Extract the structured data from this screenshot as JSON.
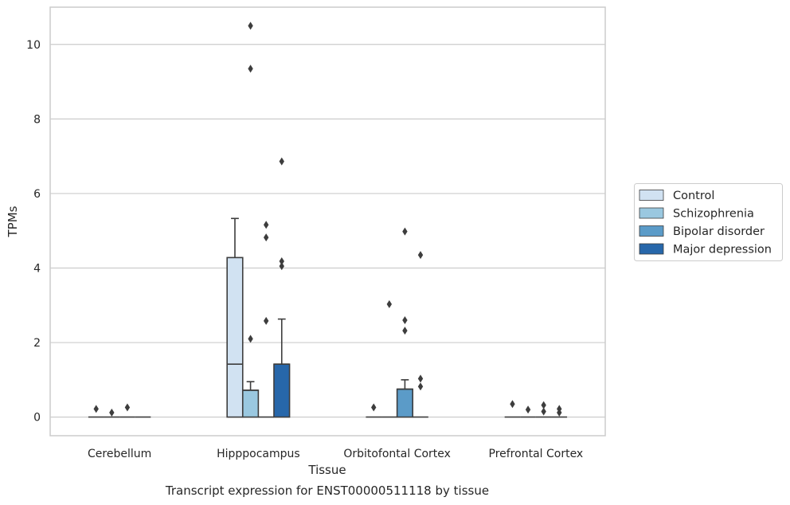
{
  "chart_data": {
    "type": "box",
    "title": "Transcript expression for ENST00000511118 by tissue",
    "xlabel": "Tissue",
    "ylabel": "TPMs",
    "ylim": [
      -0.5,
      11.0
    ],
    "yticks": [
      0,
      2,
      4,
      6,
      8,
      10
    ],
    "grid": true,
    "legend_position": "right",
    "categories": [
      "Cerebellum",
      "Hipppocampus",
      "Orbitofontal Cortex",
      "Prefrontal Cortex"
    ],
    "series": [
      {
        "name": "Control",
        "color": "#d1e2f2",
        "boxes": [
          {
            "q1": 0,
            "median": 0,
            "q3": 0,
            "whislo": 0,
            "whishi": 0,
            "fliers": [
              0.22
            ]
          },
          {
            "q1": 0,
            "median": 1.42,
            "q3": 4.28,
            "whislo": 0,
            "whishi": 5.33,
            "fliers": []
          },
          {
            "q1": 0,
            "median": 0,
            "q3": 0,
            "whislo": 0,
            "whishi": 0,
            "fliers": [
              0.26
            ]
          },
          {
            "q1": 0,
            "median": 0,
            "q3": 0,
            "whislo": 0,
            "whishi": 0,
            "fliers": [
              0.35
            ]
          }
        ]
      },
      {
        "name": "Schizophrenia",
        "color": "#9ac8e0",
        "boxes": [
          {
            "q1": 0,
            "median": 0,
            "q3": 0,
            "whislo": 0,
            "whishi": 0,
            "fliers": [
              0.12
            ]
          },
          {
            "q1": 0,
            "median": 0.72,
            "q3": 0.72,
            "whislo": 0,
            "whishi": 0.95,
            "fliers": [
              2.1,
              9.35,
              10.5
            ]
          },
          {
            "q1": 0,
            "median": 0,
            "q3": 0,
            "whislo": 0,
            "whishi": 0,
            "fliers": [
              3.03
            ]
          },
          {
            "q1": 0,
            "median": 0,
            "q3": 0,
            "whislo": 0,
            "whishi": 0,
            "fliers": [
              0.2
            ]
          }
        ]
      },
      {
        "name": "Bipolar disorder",
        "color": "#5b9bc8",
        "boxes": [
          {
            "q1": 0,
            "median": 0,
            "q3": 0,
            "whislo": 0,
            "whishi": 0,
            "fliers": [
              0.26
            ]
          },
          {
            "q1": 0,
            "median": 0,
            "q3": 0,
            "whislo": 0,
            "whishi": 0,
            "fliers": [
              2.58,
              4.82,
              5.16
            ]
          },
          {
            "q1": 0,
            "median": 0.75,
            "q3": 0.75,
            "whislo": 0,
            "whishi": 1.0,
            "fliers": [
              2.32,
              2.6,
              4.98
            ]
          },
          {
            "q1": 0,
            "median": 0,
            "q3": 0,
            "whislo": 0,
            "whishi": 0,
            "fliers": [
              0.15,
              0.32
            ]
          }
        ]
      },
      {
        "name": "Major depression",
        "color": "#2767aa",
        "boxes": [
          {
            "q1": 0,
            "median": 0,
            "q3": 0,
            "whislo": 0,
            "whishi": 0,
            "fliers": []
          },
          {
            "q1": 0,
            "median": 1.42,
            "q3": 1.42,
            "whislo": 0,
            "whishi": 2.63,
            "fliers": [
              4.05,
              4.18,
              6.86
            ]
          },
          {
            "q1": 0,
            "median": 0,
            "q3": 0,
            "whislo": 0,
            "whishi": 0,
            "fliers": [
              0.82,
              1.03,
              4.35
            ]
          },
          {
            "q1": 0,
            "median": 0,
            "q3": 0,
            "whislo": 0,
            "whishi": 0,
            "fliers": [
              0.12,
              0.22
            ]
          }
        ]
      }
    ]
  }
}
